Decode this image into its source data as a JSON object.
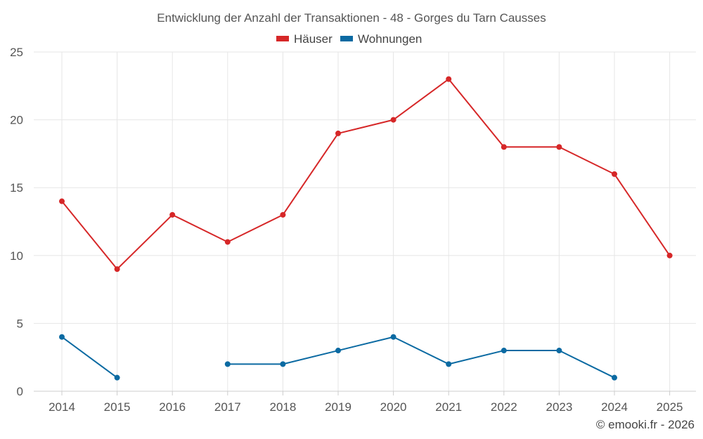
{
  "chart_data": {
    "type": "line",
    "title": "Entwicklung der Anzahl der Transaktionen - 48 - Gorges du Tarn Causses",
    "xlabel": "",
    "ylabel": "",
    "categories": [
      "2014",
      "2015",
      "2016",
      "2017",
      "2018",
      "2019",
      "2020",
      "2021",
      "2022",
      "2023",
      "2024",
      "2025"
    ],
    "ylim": [
      0,
      25
    ],
    "yticks": [
      0,
      5,
      10,
      15,
      20,
      25
    ],
    "grid": true,
    "legend": "top-center",
    "series": [
      {
        "name": "Häuser",
        "color": "#d62728",
        "values": [
          14,
          9,
          13,
          11,
          13,
          19,
          20,
          23,
          18,
          18,
          16,
          10
        ]
      },
      {
        "name": "Wohnungen",
        "color": "#0b6aa2",
        "values": [
          4,
          1,
          null,
          2,
          2,
          3,
          4,
          2,
          3,
          3,
          1,
          null
        ]
      }
    ]
  },
  "credit": "© emooki.fr - 2026"
}
